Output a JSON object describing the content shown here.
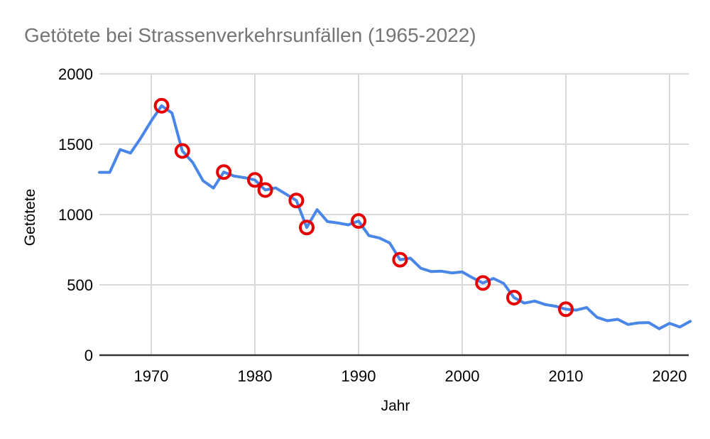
{
  "chart_data": {
    "type": "line",
    "title": "Getötete bei Strassenverkehrsunfällen (1965-2022)",
    "xlabel": "Jahr",
    "ylabel": "Getötete",
    "xlim": [
      1965,
      2022
    ],
    "ylim": [
      0,
      2000
    ],
    "x_ticks": [
      1970,
      1980,
      1990,
      2000,
      2010,
      2020
    ],
    "y_ticks": [
      0,
      500,
      1000,
      1500,
      2000
    ],
    "grid": true,
    "legend": false,
    "years": [
      1965,
      1966,
      1967,
      1968,
      1969,
      1970,
      1971,
      1972,
      1973,
      1974,
      1975,
      1976,
      1977,
      1978,
      1979,
      1980,
      1981,
      1982,
      1983,
      1984,
      1985,
      1986,
      1987,
      1988,
      1989,
      1990,
      1991,
      1992,
      1993,
      1994,
      1995,
      1996,
      1997,
      1998,
      1999,
      2000,
      2001,
      2002,
      2003,
      2004,
      2005,
      2006,
      2007,
      2008,
      2009,
      2010,
      2011,
      2012,
      2013,
      2014,
      2015,
      2016,
      2017,
      2018,
      2019,
      2020,
      2021,
      2022
    ],
    "values": [
      1300,
      1300,
      1462,
      1437,
      1545,
      1665,
      1773,
      1722,
      1452,
      1370,
      1240,
      1188,
      1302,
      1273,
      1262,
      1246,
      1174,
      1190,
      1145,
      1100,
      908,
      1035,
      950,
      940,
      927,
      954,
      850,
      834,
      798,
      679,
      690,
      618,
      595,
      597,
      585,
      592,
      550,
      513,
      546,
      510,
      409,
      370,
      385,
      360,
      348,
      327,
      320,
      339,
      269,
      245,
      255,
      218,
      230,
      232,
      188,
      227,
      200,
      241
    ],
    "circled_years": [
      1971,
      1973,
      1977,
      1980,
      1981,
      1984,
      1985,
      1990,
      1994,
      2002,
      2005,
      2010
    ],
    "colors": {
      "line": "#4a86e8",
      "marker_stroke": "#e60000",
      "title_text": "#757575",
      "tick_text": "#000000",
      "gridline": "#d9d9d9",
      "axis_line": "#333333",
      "background": "#ffffff"
    }
  }
}
